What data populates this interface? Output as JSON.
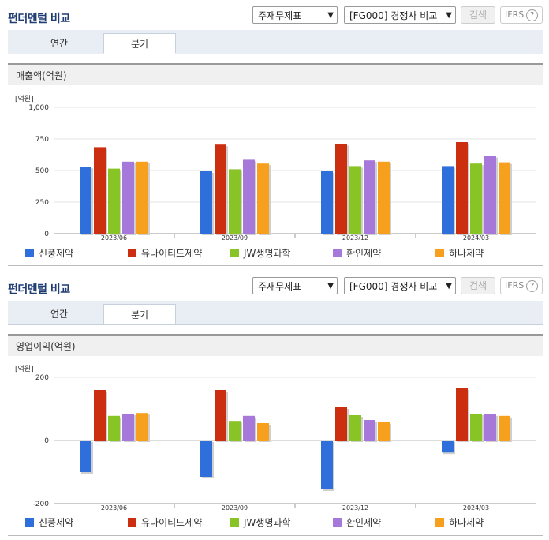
{
  "series_colors": [
    "#2e6fdb",
    "#cc2f0f",
    "#88c425",
    "#a678d9",
    "#f7a01e"
  ],
  "panels": [
    {
      "title": "펀더멘털 비교",
      "select1": "주재무제표",
      "select2": "[FG000] 경쟁사 비교",
      "search_btn": "검색",
      "ifrs": "IFRS",
      "ifrs_help": "?",
      "tabs": [
        "연간",
        "분기"
      ],
      "metric": "매출액(억원)",
      "unit": "[억원]"
    },
    {
      "title": "펀더멘털 비교",
      "select1": "주재무제표",
      "select2": "[FG000] 경쟁사 비교",
      "search_btn": "검색",
      "ifrs": "IFRS",
      "ifrs_help": "?",
      "tabs": [
        "연간",
        "분기"
      ],
      "metric": "영업이익(억원)",
      "unit": "[억원]"
    }
  ],
  "chart_data": [
    {
      "type": "bar",
      "categories": [
        "2023/06",
        "2023/09",
        "2023/12",
        "2024/03"
      ],
      "ylim": [
        0,
        1000
      ],
      "yticks": [
        "0",
        "250",
        "500",
        "750",
        "1,000"
      ],
      "ytick_values": [
        0,
        250,
        500,
        750,
        1000
      ],
      "series": [
        {
          "name": "신풍제약",
          "values": [
            530,
            495,
            495,
            535
          ]
        },
        {
          "name": "유나이티드제약",
          "values": [
            685,
            705,
            710,
            725
          ]
        },
        {
          "name": "JW생명과학",
          "values": [
            515,
            510,
            535,
            555
          ]
        },
        {
          "name": "환인제약",
          "values": [
            570,
            585,
            580,
            615
          ]
        },
        {
          "name": "하나제약",
          "values": [
            570,
            555,
            570,
            565
          ]
        }
      ]
    },
    {
      "type": "bar",
      "categories": [
        "2023/06",
        "2023/09",
        "2023/12",
        "2024/03"
      ],
      "ylim": [
        -200,
        200
      ],
      "yticks": [
        "-200",
        "0",
        "200"
      ],
      "ytick_values": [
        -200,
        0,
        200
      ],
      "series": [
        {
          "name": "신풍제약",
          "values": [
            -100,
            -115,
            -155,
            -38
          ]
        },
        {
          "name": "유나이티드제약",
          "values": [
            160,
            160,
            105,
            165
          ]
        },
        {
          "name": "JW생명과학",
          "values": [
            78,
            62,
            80,
            85
          ]
        },
        {
          "name": "환인제약",
          "values": [
            85,
            78,
            65,
            83
          ]
        },
        {
          "name": "하나제약",
          "values": [
            87,
            55,
            58,
            78
          ]
        }
      ]
    }
  ]
}
